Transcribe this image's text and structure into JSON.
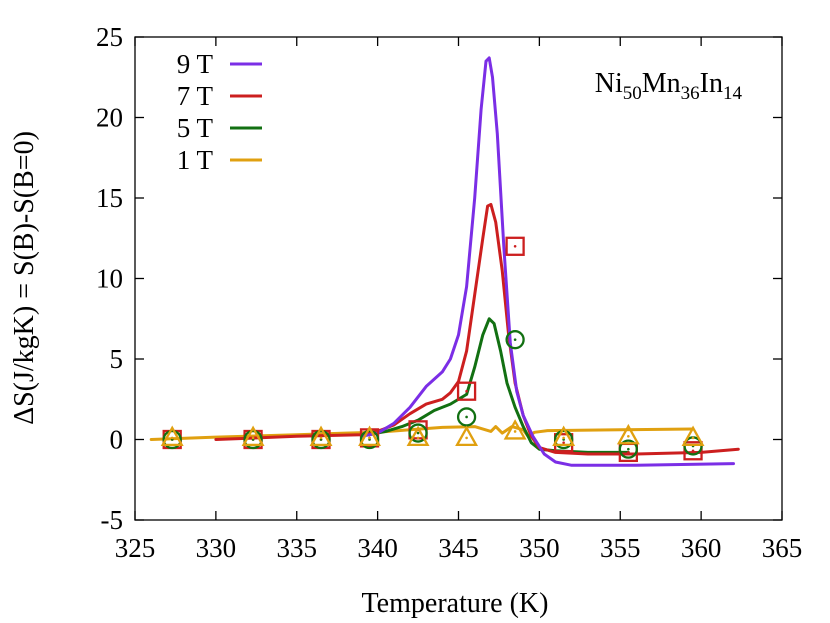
{
  "chart_data": {
    "type": "line",
    "xlabel": "Temperature (K)",
    "ylabel": "ΔS(J/kgK) = S(B)-S(B=0)",
    "xlim": [
      325,
      365
    ],
    "ylim": [
      -5,
      25
    ],
    "xticks": [
      325,
      330,
      335,
      340,
      345,
      350,
      355,
      360,
      365
    ],
    "yticks": [
      -5,
      0,
      5,
      10,
      15,
      20,
      25
    ],
    "legend_position": "top-left",
    "annotation": {
      "parts": [
        {
          "text": "Ni",
          "sub": false
        },
        {
          "text": "50",
          "sub": true
        },
        {
          "text": "Mn",
          "sub": false
        },
        {
          "text": "36",
          "sub": true
        },
        {
          "text": "In",
          "sub": false
        },
        {
          "text": "14",
          "sub": true
        }
      ]
    },
    "series": [
      {
        "name": "9 T",
        "color": "#7b2ee6",
        "line": [
          [
            339,
            0.2
          ],
          [
            340,
            0.4
          ],
          [
            341,
            1.0
          ],
          [
            342,
            2.0
          ],
          [
            343,
            3.3
          ],
          [
            344,
            4.2
          ],
          [
            344.5,
            5.0
          ],
          [
            345,
            6.5
          ],
          [
            345.5,
            9.5
          ],
          [
            346,
            15.0
          ],
          [
            346.4,
            20.5
          ],
          [
            346.7,
            23.5
          ],
          [
            346.9,
            23.7
          ],
          [
            347.1,
            22.5
          ],
          [
            347.4,
            19.0
          ],
          [
            347.8,
            12.0
          ],
          [
            348.2,
            6.0
          ],
          [
            348.6,
            3.0
          ],
          [
            349,
            1.5
          ],
          [
            349.6,
            0.2
          ],
          [
            350.3,
            -0.9
          ],
          [
            351,
            -1.4
          ],
          [
            352,
            -1.6
          ],
          [
            356,
            -1.6
          ],
          [
            362,
            -1.5
          ]
        ],
        "markers": []
      },
      {
        "name": "7 T",
        "color": "#cc1f1f",
        "marker": "square",
        "line": [
          [
            330,
            0.0
          ],
          [
            335,
            0.2
          ],
          [
            339,
            0.3
          ],
          [
            340,
            0.5
          ],
          [
            341,
            0.9
          ],
          [
            342,
            1.6
          ],
          [
            343,
            2.2
          ],
          [
            344,
            2.5
          ],
          [
            344.5,
            2.9
          ],
          [
            345,
            3.6
          ],
          [
            345.5,
            5.5
          ],
          [
            346,
            9.0
          ],
          [
            346.5,
            12.5
          ],
          [
            346.8,
            14.5
          ],
          [
            347,
            14.6
          ],
          [
            347.3,
            13.5
          ],
          [
            347.7,
            10.5
          ],
          [
            348.1,
            6.5
          ],
          [
            348.5,
            3.5
          ],
          [
            349,
            1.5
          ],
          [
            349.5,
            0.2
          ],
          [
            350,
            -0.5
          ],
          [
            351,
            -0.8
          ],
          [
            353,
            -0.9
          ],
          [
            356,
            -0.9
          ],
          [
            360,
            -0.8
          ],
          [
            362.3,
            -0.6
          ]
        ],
        "markers": [
          [
            327.3,
            0.0
          ],
          [
            332.3,
            0.0
          ],
          [
            336.5,
            0.0
          ],
          [
            339.5,
            0.1
          ],
          [
            342.5,
            0.6
          ],
          [
            345.5,
            3.0
          ],
          [
            348.5,
            12.0
          ],
          [
            351.5,
            -0.2
          ],
          [
            355.5,
            -0.8
          ],
          [
            359.5,
            -0.7
          ]
        ]
      },
      {
        "name": "5 T",
        "color": "#127012",
        "marker": "circle",
        "line": [
          [
            339.5,
            0.3
          ],
          [
            340.5,
            0.5
          ],
          [
            341.5,
            0.8
          ],
          [
            342.5,
            1.2
          ],
          [
            343.5,
            1.8
          ],
          [
            344.5,
            2.2
          ],
          [
            345.5,
            2.8
          ],
          [
            346,
            4.5
          ],
          [
            346.5,
            6.5
          ],
          [
            346.9,
            7.5
          ],
          [
            347.2,
            7.2
          ],
          [
            347.6,
            5.5
          ],
          [
            348,
            3.5
          ],
          [
            348.5,
            2.0
          ],
          [
            349,
            0.8
          ],
          [
            349.5,
            -0.2
          ],
          [
            350,
            -0.6
          ],
          [
            351,
            -0.7
          ],
          [
            353,
            -0.8
          ],
          [
            355.5,
            -0.8
          ]
        ],
        "markers": [
          [
            327.3,
            0.0
          ],
          [
            332.3,
            0.0
          ],
          [
            336.5,
            0.0
          ],
          [
            339.5,
            0.0
          ],
          [
            342.5,
            0.4
          ],
          [
            345.5,
            1.4
          ],
          [
            348.5,
            6.2
          ],
          [
            351.5,
            0.0
          ],
          [
            355.5,
            -0.6
          ],
          [
            359.5,
            -0.4
          ]
        ]
      },
      {
        "name": "1 T",
        "color": "#e0a010",
        "marker": "triangle",
        "line": [
          [
            326,
            0.0
          ],
          [
            330,
            0.15
          ],
          [
            335,
            0.3
          ],
          [
            338,
            0.4
          ],
          [
            340,
            0.45
          ],
          [
            342,
            0.6
          ],
          [
            344,
            0.75
          ],
          [
            346,
            0.8
          ],
          [
            347,
            0.5
          ],
          [
            347.3,
            0.8
          ],
          [
            347.7,
            0.4
          ],
          [
            348.3,
            0.8
          ],
          [
            349,
            0.6
          ],
          [
            349.3,
            0.2
          ],
          [
            349.7,
            0.45
          ],
          [
            350.5,
            0.55
          ],
          [
            355,
            0.6
          ],
          [
            359.5,
            0.65
          ]
        ],
        "markers": [
          [
            327.3,
            0.1
          ],
          [
            332.3,
            0.1
          ],
          [
            336.5,
            0.1
          ],
          [
            339.5,
            0.1
          ],
          [
            342.5,
            0.1
          ],
          [
            345.5,
            0.1
          ],
          [
            348.5,
            0.5
          ],
          [
            351.5,
            0.1
          ],
          [
            355.5,
            0.2
          ],
          [
            359.5,
            0.1
          ]
        ]
      }
    ]
  }
}
